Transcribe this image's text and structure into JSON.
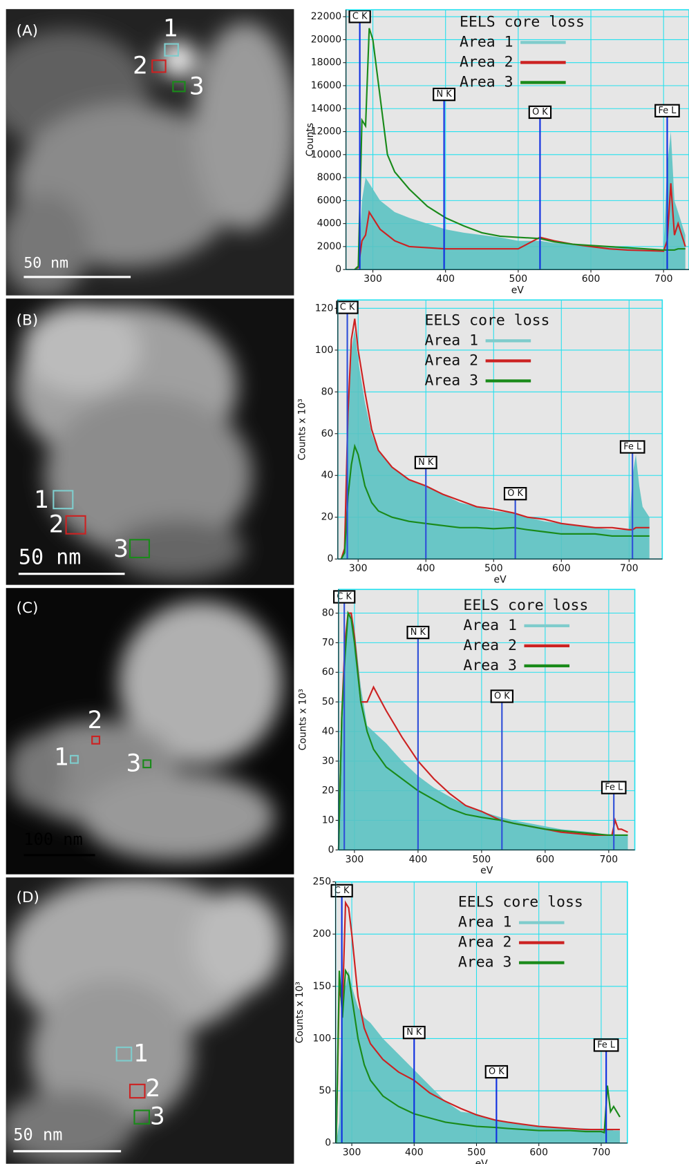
{
  "chart_data": [
    {
      "type": "line",
      "y_label": "Counts",
      "x_label": "eV",
      "legend_title": "EELS core loss",
      "xlim": [
        263,
        735
      ],
      "xticks": [
        300,
        400,
        500,
        600,
        700
      ],
      "ylim": [
        0,
        22600
      ],
      "yticks": [
        0,
        2000,
        4000,
        6000,
        8000,
        10000,
        12000,
        14000,
        16000,
        18000,
        20000,
        22000
      ],
      "grid": true,
      "x": [
        275,
        280,
        285,
        290,
        295,
        300,
        310,
        320,
        330,
        350,
        375,
        400,
        425,
        450,
        475,
        500,
        530,
        550,
        575,
        600,
        625,
        650,
        675,
        700,
        705,
        710,
        715,
        720,
        730
      ],
      "annotations": [
        {
          "label": "C K",
          "x": 282
        },
        {
          "label": "N K",
          "x": 398
        },
        {
          "label": "O K",
          "x": 530
        },
        {
          "label": "Fe L",
          "x": 705
        }
      ],
      "series": [
        {
          "name": "Area 1",
          "color": "#7fcccc",
          "fill": "#5bc2c2",
          "values": [
            0,
            200,
            6000,
            8000,
            7500,
            7000,
            6000,
            5500,
            5000,
            4500,
            4000,
            3500,
            3200,
            3000,
            2800,
            2500,
            2500,
            2300,
            2200,
            2100,
            2000,
            1900,
            1800,
            1700,
            9000,
            12000,
            6000,
            5000,
            3000
          ]
        },
        {
          "name": "Area 2",
          "color": "#cc2222",
          "values": [
            0,
            200,
            2500,
            3000,
            5000,
            4500,
            3500,
            3000,
            2500,
            2000,
            1900,
            1800,
            1800,
            1800,
            1800,
            1800,
            2800,
            2500,
            2200,
            2000,
            1800,
            1700,
            1650,
            1600,
            2500,
            7500,
            3000,
            4000,
            2000
          ]
        },
        {
          "name": "Area 3",
          "color": "#1a8a1a",
          "values": [
            0,
            300,
            13000,
            12500,
            21000,
            20000,
            15000,
            10000,
            8500,
            7000,
            5500,
            4500,
            3800,
            3200,
            2900,
            2800,
            2700,
            2400,
            2200,
            2100,
            2000,
            1900,
            1800,
            1700,
            1700,
            1700,
            1700,
            1800,
            1800
          ]
        }
      ]
    },
    {
      "type": "line",
      "y_label": "Counts x 10³",
      "x_label": "eV",
      "legend_title": "EELS core loss",
      "xlim": [
        270,
        749
      ],
      "xticks": [
        300,
        400,
        500,
        600,
        700
      ],
      "ylim": [
        0,
        124
      ],
      "yticks": [
        0,
        20,
        40,
        60,
        80,
        100,
        120
      ],
      "grid": true,
      "x": [
        275,
        280,
        285,
        290,
        295,
        300,
        310,
        320,
        330,
        350,
        375,
        400,
        425,
        450,
        475,
        500,
        530,
        550,
        575,
        600,
        625,
        650,
        675,
        700,
        705,
        710,
        715,
        720,
        730
      ],
      "annotations": [
        {
          "label": "C K",
          "x": 284
        },
        {
          "label": "N K",
          "x": 400
        },
        {
          "label": "O K",
          "x": 532
        },
        {
          "label": "Fe L",
          "x": 705
        }
      ],
      "series": [
        {
          "name": "Area 1",
          "color": "#7fcccc",
          "fill": "#5bc2c2",
          "values": [
            0,
            5,
            70,
            100,
            110,
            95,
            75,
            60,
            52,
            44,
            38,
            35,
            31,
            27,
            25,
            23,
            22,
            20,
            18,
            17,
            16,
            15,
            14,
            14,
            40,
            50,
            35,
            25,
            20
          ]
        },
        {
          "name": "Area 2",
          "color": "#cc2222",
          "values": [
            0,
            5,
            70,
            105,
            115,
            100,
            80,
            62,
            52,
            44,
            38,
            35,
            31,
            28,
            25,
            24,
            22,
            20,
            19,
            17,
            16,
            15,
            15,
            14,
            14,
            15,
            15,
            15,
            15
          ]
        },
        {
          "name": "Area 3",
          "color": "#1a8a1a",
          "values": [
            0,
            3,
            30,
            45,
            54,
            50,
            35,
            27,
            23,
            20,
            18,
            17,
            16,
            15,
            15,
            14.5,
            15,
            14,
            13,
            12,
            12,
            12,
            11,
            11,
            11,
            11,
            11,
            11,
            11
          ]
        }
      ]
    },
    {
      "type": "line",
      "y_label": "Counts x 10³",
      "x_label": "eV",
      "legend_title": "EELS core loss",
      "xlim": [
        275,
        741
      ],
      "xticks": [
        300,
        400,
        500,
        600,
        700
      ],
      "ylim": [
        0,
        88
      ],
      "yticks": [
        0,
        10,
        20,
        30,
        40,
        50,
        60,
        70,
        80
      ],
      "grid": true,
      "x": [
        275,
        280,
        285,
        290,
        295,
        300,
        310,
        320,
        330,
        350,
        375,
        400,
        425,
        450,
        475,
        500,
        530,
        550,
        575,
        600,
        625,
        650,
        675,
        700,
        705,
        710,
        715,
        720,
        730
      ],
      "annotations": [
        {
          "label": "C K",
          "x": 284
        },
        {
          "label": "N K",
          "x": 400
        },
        {
          "label": "O K",
          "x": 532
        },
        {
          "label": "Fe L",
          "x": 708
        }
      ],
      "series": [
        {
          "name": "Area 1",
          "color": "#7fcccc",
          "fill": "#5bc2c2",
          "values": [
            0,
            50,
            65,
            80,
            80,
            75,
            55,
            42,
            40,
            36,
            30,
            25,
            21,
            18,
            15,
            13,
            11,
            10,
            9,
            8,
            7,
            6.5,
            6,
            5,
            5,
            5,
            5,
            5,
            5
          ]
        },
        {
          "name": "Area 2",
          "color": "#cc2222",
          "values": [
            0,
            45,
            70,
            80,
            80,
            72,
            50,
            50,
            55,
            47,
            38,
            30,
            24,
            19,
            15,
            13,
            10,
            9,
            8,
            7,
            6,
            5.5,
            5,
            5,
            5,
            10,
            7,
            7,
            6
          ]
        },
        {
          "name": "Area 3",
          "color": "#1a8a1a",
          "values": [
            0,
            45,
            65,
            80,
            78,
            70,
            50,
            40,
            34,
            28,
            24,
            20,
            17,
            14,
            12,
            11,
            10,
            9,
            8,
            7,
            6.5,
            6,
            5.5,
            5,
            5,
            5,
            5,
            5,
            5
          ]
        }
      ]
    },
    {
      "type": "line",
      "y_label": "Counts x 10³",
      "x_label": "eV",
      "legend_title": "EELS core loss",
      "xlim": [
        274,
        742
      ],
      "xticks": [
        300,
        400,
        500,
        600,
        700
      ],
      "ylim": [
        0,
        250
      ],
      "yticks": [
        0,
        50,
        100,
        150,
        200,
        250
      ],
      "grid": true,
      "x": [
        275,
        280,
        285,
        290,
        295,
        300,
        310,
        320,
        330,
        350,
        375,
        400,
        425,
        450,
        475,
        500,
        530,
        550,
        575,
        600,
        625,
        650,
        675,
        700,
        705,
        710,
        715,
        720,
        730
      ],
      "annotations": [
        {
          "label": "C K",
          "x": 284
        },
        {
          "label": "N K",
          "x": 400
        },
        {
          "label": "O K",
          "x": 532
        },
        {
          "label": "Fe L",
          "x": 708
        }
      ],
      "series": [
        {
          "name": "Area 1",
          "color": "#7fcccc",
          "fill": "#5bc2c2",
          "values": [
            0,
            20,
            140,
            150,
            165,
            150,
            130,
            120,
            115,
            100,
            85,
            70,
            55,
            40,
            30,
            28,
            22,
            20,
            18,
            16,
            15,
            14,
            14,
            13,
            13,
            13,
            13,
            12,
            12
          ]
        },
        {
          "name": "Area 2",
          "color": "#cc2222",
          "values": [
            0,
            150,
            130,
            230,
            225,
            200,
            140,
            110,
            95,
            80,
            68,
            60,
            48,
            40,
            33,
            27,
            22,
            20,
            18,
            16,
            15,
            14,
            13,
            13,
            13,
            13,
            13,
            13,
            13
          ]
        },
        {
          "name": "Area 3",
          "color": "#1a8a1a",
          "values": [
            0,
            165,
            120,
            165,
            160,
            140,
            100,
            75,
            60,
            45,
            35,
            28,
            24,
            20,
            18,
            16,
            15,
            14,
            13,
            12,
            12,
            12,
            11,
            11,
            10,
            55,
            30,
            35,
            25
          ]
        }
      ]
    }
  ],
  "images": [
    {
      "label": "(A)",
      "scale_bar": "50 nm",
      "regions": [
        "1",
        "2",
        "3"
      ]
    },
    {
      "label": "(B)",
      "scale_bar": "50 nm",
      "regions": [
        "1",
        "2",
        "3"
      ]
    },
    {
      "label": "(C)",
      "scale_bar": "100 nm",
      "regions": [
        "1",
        "2",
        "3"
      ]
    },
    {
      "label": "(D)",
      "scale_bar": "50 nm",
      "regions": [
        "1",
        "2",
        "3"
      ]
    }
  ]
}
